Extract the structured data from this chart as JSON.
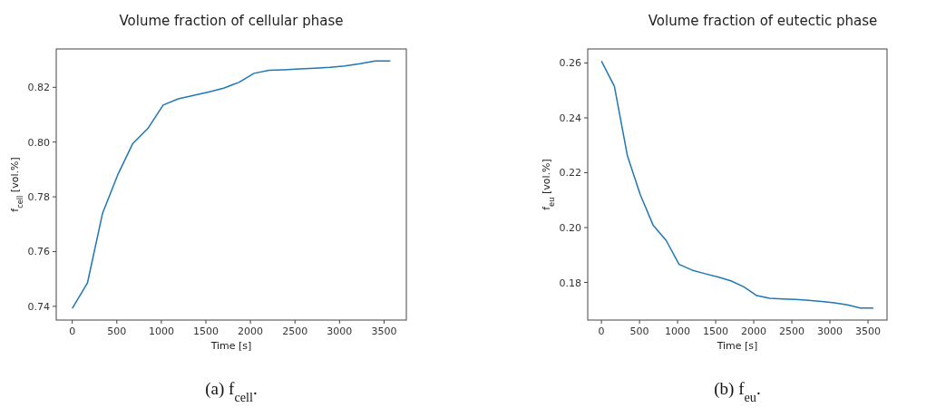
{
  "chart_data": [
    {
      "type": "line",
      "title": "Volume fraction of cellular phase",
      "xlabel": "Time [s]",
      "ylabel": "f$_{cell}$ [vol.%]",
      "annotations": [
        "(a) f$_{cell}$."
      ],
      "x": [
        0,
        170,
        340,
        510,
        680,
        850,
        1020,
        1190,
        1360,
        1530,
        1700,
        1870,
        2040,
        2210,
        2380,
        2550,
        2720,
        2890,
        3060,
        3230,
        3400,
        3570
      ],
      "series": [
        {
          "color": "#1f77b4",
          "values": [
            0.7393,
            0.7485,
            0.774,
            0.788,
            0.7995,
            0.805,
            0.8135,
            0.8158,
            0.817,
            0.8183,
            0.8197,
            0.8218,
            0.8251,
            0.8262,
            0.8264,
            0.8267,
            0.827,
            0.8273,
            0.8278,
            0.8286,
            0.8296,
            0.8296
          ]
        }
      ],
      "xlim": [
        -180,
        3750
      ],
      "ylim": [
        0.735,
        0.834
      ],
      "xticks": [
        0,
        500,
        1000,
        1500,
        2000,
        2500,
        3000,
        3500
      ],
      "yticks": [
        {
          "value": 0.74,
          "label": "0.74"
        },
        {
          "value": 0.76,
          "label": "0.76"
        },
        {
          "value": 0.78,
          "label": "0.78"
        },
        {
          "value": 0.8,
          "label": "0.80"
        },
        {
          "value": 0.82,
          "label": "0.82"
        }
      ],
      "grid": false
    },
    {
      "type": "line",
      "title": "Volume fraction of eutectic phase",
      "xlabel": "Time [s]",
      "ylabel": "f$_{eu}$ [vol.%]",
      "annotations": [
        "(b) f$_{eu}$."
      ],
      "x": [
        0,
        170,
        340,
        510,
        680,
        850,
        1020,
        1190,
        1360,
        1530,
        1700,
        1870,
        2040,
        2210,
        2380,
        2550,
        2720,
        2890,
        3060,
        3230,
        3400,
        3570
      ],
      "series": [
        {
          "color": "#1f77b4",
          "values": [
            0.2607,
            0.2515,
            0.2263,
            0.212,
            0.2008,
            0.1953,
            0.1866,
            0.1845,
            0.1832,
            0.182,
            0.1806,
            0.1784,
            0.1752,
            0.1742,
            0.174,
            0.1738,
            0.1735,
            0.1731,
            0.1726,
            0.1718,
            0.1707,
            0.1707
          ]
        }
      ],
      "xlim": [
        -180,
        3750
      ],
      "ylim": [
        0.1663,
        0.2651
      ],
      "xticks": [
        0,
        500,
        1000,
        1500,
        2000,
        2500,
        3000,
        3500
      ],
      "yticks": [
        {
          "value": 0.18,
          "label": "0.18"
        },
        {
          "value": 0.2,
          "label": "0.20"
        },
        {
          "value": 0.22,
          "label": "0.22"
        },
        {
          "value": 0.24,
          "label": "0.24"
        },
        {
          "value": 0.26,
          "label": "0.26"
        }
      ],
      "grid": false
    }
  ]
}
